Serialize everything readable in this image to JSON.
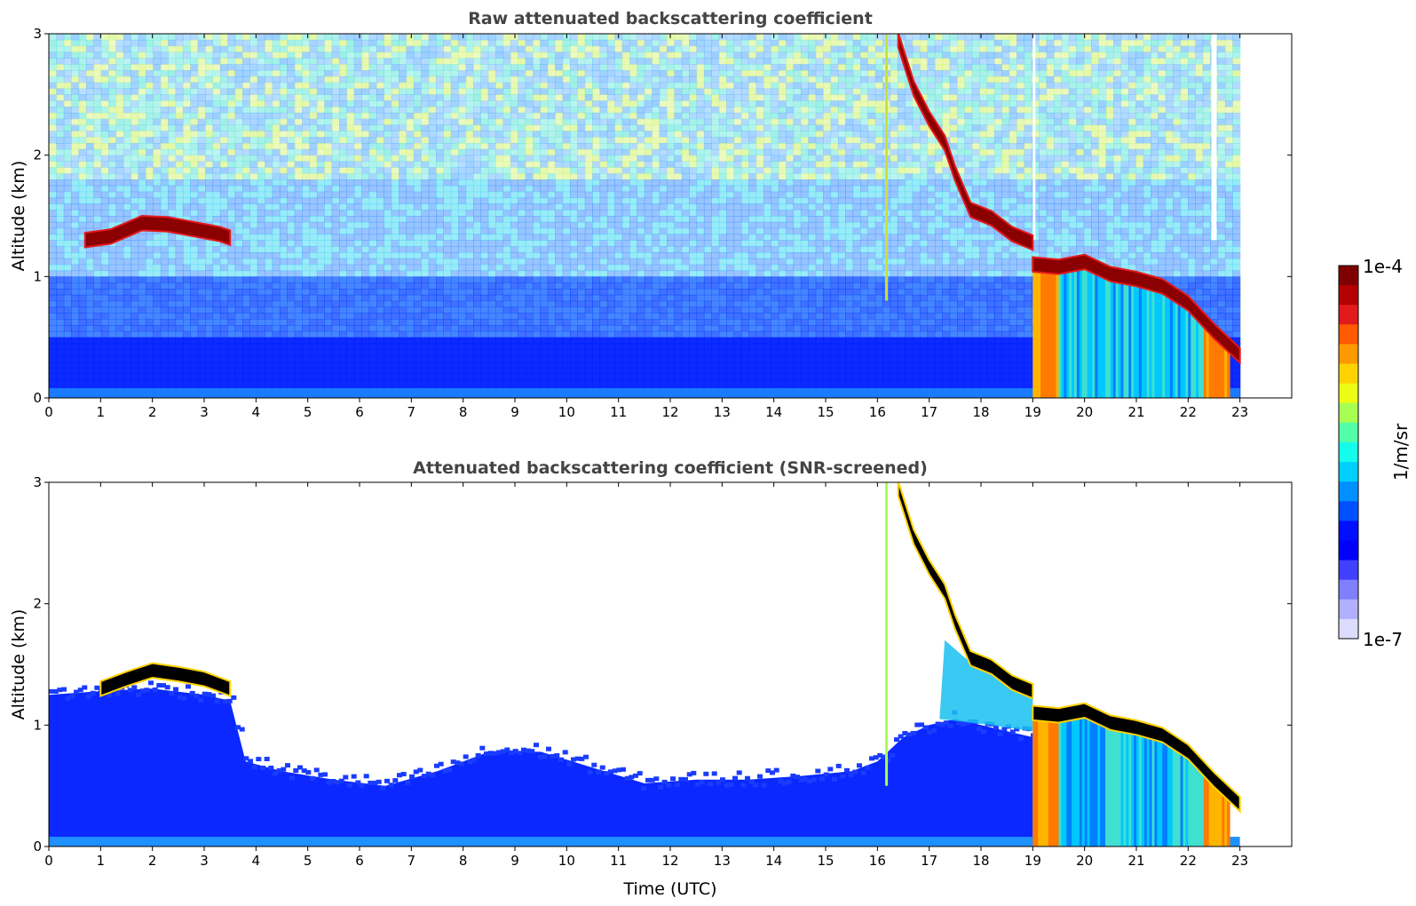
{
  "chart_data": [
    {
      "type": "heatmap",
      "title": "Raw attenuated backscattering coefficient",
      "xlabel": "",
      "ylabel": "Altitude (km)",
      "xlim": [
        0,
        24
      ],
      "ylim": [
        0,
        3
      ],
      "xticks": [
        "0",
        "1",
        "2",
        "3",
        "4",
        "5",
        "6",
        "7",
        "8",
        "9",
        "10",
        "11",
        "12",
        "13",
        "14",
        "15",
        "16",
        "17",
        "18",
        "19",
        "20",
        "21",
        "22",
        "23"
      ],
      "yticks": [
        "0",
        "1",
        "2",
        "3"
      ],
      "cloud_layers": [
        {
          "x": [
            0.7,
            1.2,
            1.8,
            2.3,
            2.8,
            3.3,
            3.5
          ],
          "y": [
            1.3,
            1.33,
            1.44,
            1.43,
            1.39,
            1.35,
            1.32
          ]
        },
        {
          "x": [
            16.4,
            16.7,
            17.0,
            17.3,
            17.5,
            17.8,
            18.2,
            18.6,
            19.0
          ],
          "y": [
            2.95,
            2.55,
            2.3,
            2.1,
            1.85,
            1.55,
            1.48,
            1.35,
            1.28
          ]
        },
        {
          "x": [
            19.0,
            19.5,
            20.0,
            20.5,
            21.0,
            21.5,
            22.0,
            22.5,
            23.0
          ],
          "y": [
            1.1,
            1.08,
            1.12,
            1.02,
            0.98,
            0.92,
            0.78,
            0.55,
            0.35
          ]
        }
      ],
      "precipitation_x": [
        19.0,
        22.8
      ],
      "noisy": true,
      "colorscale": "jet"
    },
    {
      "type": "heatmap",
      "title": "Attenuated backscattering coefficient (SNR-screened)",
      "xlabel": "Time (UTC)",
      "ylabel": "Altitude (km)",
      "xlim": [
        0,
        24
      ],
      "ylim": [
        0,
        3
      ],
      "xticks": [
        "0",
        "1",
        "2",
        "3",
        "4",
        "5",
        "6",
        "7",
        "8",
        "9",
        "10",
        "11",
        "12",
        "13",
        "14",
        "15",
        "16",
        "17",
        "18",
        "19",
        "20",
        "21",
        "22",
        "23"
      ],
      "yticks": [
        "0",
        "1",
        "2",
        "3"
      ],
      "boundary_layer_top": {
        "x": [
          0,
          1,
          2,
          3,
          3.5,
          3.8,
          4.5,
          5.5,
          6.5,
          7.5,
          8.5,
          9.5,
          10.5,
          11.5,
          12.5,
          13.5,
          14.5,
          15.5,
          16.0,
          16.5,
          17.0,
          17.5,
          18.0,
          18.5,
          19.0
        ],
        "y": [
          1.25,
          1.28,
          1.3,
          1.25,
          1.2,
          0.7,
          0.62,
          0.55,
          0.5,
          0.62,
          0.78,
          0.78,
          0.65,
          0.52,
          0.55,
          0.55,
          0.58,
          0.62,
          0.7,
          0.9,
          1.0,
          1.05,
          1.0,
          0.95,
          0.9
        ]
      },
      "cloud_layers": [
        {
          "x": [
            1.0,
            1.5,
            2.0,
            2.5,
            3.0,
            3.5
          ],
          "y": [
            1.3,
            1.38,
            1.45,
            1.42,
            1.38,
            1.3
          ]
        },
        {
          "x": [
            16.4,
            16.7,
            17.0,
            17.3,
            17.5,
            17.8,
            18.2,
            18.6,
            19.0
          ],
          "y": [
            2.95,
            2.55,
            2.3,
            2.1,
            1.85,
            1.55,
            1.48,
            1.35,
            1.28
          ]
        },
        {
          "x": [
            19.0,
            19.5,
            20.0,
            20.5,
            21.0,
            21.5,
            22.0,
            22.5,
            23.0
          ],
          "y": [
            1.1,
            1.08,
            1.12,
            1.02,
            0.98,
            0.92,
            0.78,
            0.55,
            0.35
          ]
        }
      ],
      "precipitation_x": [
        19.0,
        22.8
      ],
      "noisy": false,
      "colorscale": "jet"
    }
  ],
  "colorbar": {
    "top_label": "1e-4",
    "bottom_label": "1e-7",
    "unit": "1/m/sr",
    "colors": [
      "#7f0000",
      "#b30000",
      "#e31a1c",
      "#ff5a00",
      "#ff9900",
      "#ffd200",
      "#ecfc13",
      "#a6ff52",
      "#52ffa6",
      "#13fcec",
      "#00d0ff",
      "#0090ff",
      "#0050ff",
      "#0010ff",
      "#0000ff",
      "#4040ff",
      "#8080ff",
      "#b0b0ff",
      "#dcdcff"
    ]
  }
}
